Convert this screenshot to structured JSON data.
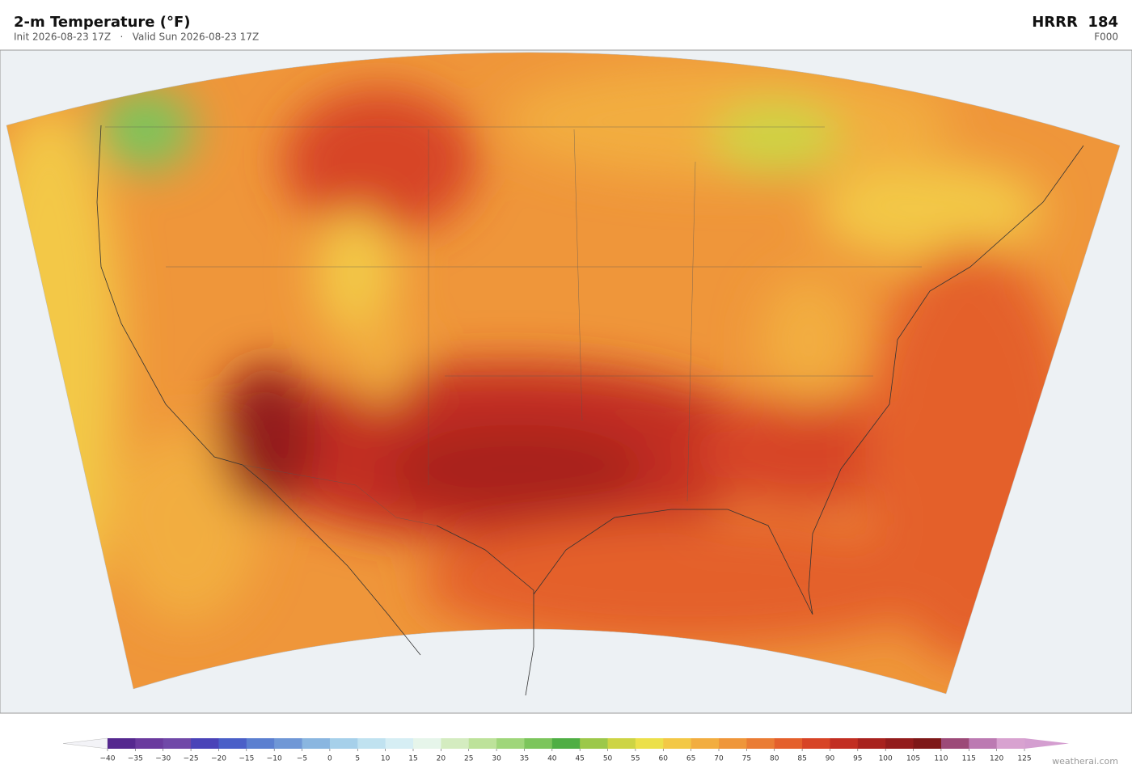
{
  "header": {
    "title": "2-m Temperature  (°F)",
    "subtitle": "Init 2026-08-23 17Z   ·   Valid Sun 2026-08-23 17Z",
    "model": "HRRR  184",
    "forecast_hour": "F000"
  },
  "colorbar": {
    "under_color": "#f3f3f7",
    "over_color": "#d49ed0",
    "colors": [
      "#55288f",
      "#6a3a9e",
      "#7048a8",
      "#4a43b8",
      "#4a5fc8",
      "#5b7fd0",
      "#6f97d6",
      "#8ab6e0",
      "#a6d0ea",
      "#c0e2f0",
      "#d6eef4",
      "#e6f5ea",
      "#d4ecc0",
      "#bde29a",
      "#9fd67a",
      "#7cc55c",
      "#4fae44",
      "#9cc84a",
      "#cdd444",
      "#ece04a",
      "#f3c846",
      "#f2ad40",
      "#ef963a",
      "#ea7c34",
      "#e4602c",
      "#d74426",
      "#c22e22",
      "#a8221e",
      "#931c1c",
      "#7e1818",
      "#9c4a78",
      "#bc7ab2",
      "#d8a2d0"
    ],
    "ticks": [
      {
        "value": -40,
        "label": "−40"
      },
      {
        "value": -35,
        "label": "−35"
      },
      {
        "value": -30,
        "label": "−30"
      },
      {
        "value": -25,
        "label": "−25"
      },
      {
        "value": -20,
        "label": "−20"
      },
      {
        "value": -15,
        "label": "−15"
      },
      {
        "value": -10,
        "label": "−10"
      },
      {
        "value": -5,
        "label": "−5"
      },
      0,
      5,
      10,
      15,
      20,
      25,
      30,
      35,
      40,
      45,
      50,
      55,
      60,
      65,
      70,
      75,
      80,
      85,
      90,
      95,
      100,
      105,
      110,
      115,
      120,
      125
    ]
  },
  "footer": {
    "credit": "weatherai.com"
  }
}
